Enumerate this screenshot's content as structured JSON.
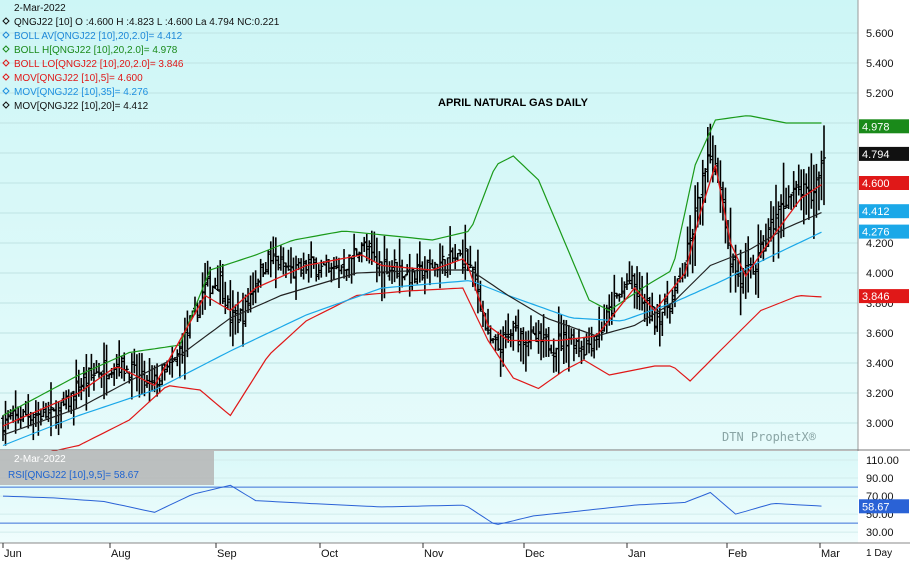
{
  "chart_data": {
    "type": "ohlc",
    "title": "APRIL NATURAL GAS DAILY",
    "date_label": "2-Mar-2022",
    "header": "QNGJ22 [10] O :4.600 H :4.823 L :4.600 La 4.794 NC:0.221",
    "watermark": "DTN ProphetX®",
    "legend": [
      {
        "label": "BOLL AV[QNGJ22 [10],20,2.0]= 4.412",
        "color": "#1e88d8"
      },
      {
        "label": "BOLL H[QNGJ22 [10],20,2.0]= 4.978",
        "color": "#1a8a1a"
      },
      {
        "label": "BOLL LO[QNGJ22 [10],20,2.0]= 3.846",
        "color": "#e01818"
      },
      {
        "label": "MOV[QNGJ22 [10],5]= 4.600",
        "color": "#e01818"
      },
      {
        "label": "MOV[QNGJ22 [10],35]= 4.276",
        "color": "#1e90e0"
      },
      {
        "label": "MOV[QNGJ22 [10],20]= 4.412",
        "color": "#111111"
      }
    ],
    "y_ticks": [
      "5.600",
      "5.400",
      "5.200",
      "5.000",
      "4.800",
      "4.600",
      "4.400",
      "4.200",
      "4.000",
      "3.800",
      "3.600",
      "3.400",
      "3.200",
      "3.000"
    ],
    "ylim": [
      2.82,
      5.82
    ],
    "price_tags": [
      {
        "value": 4.978,
        "label": "4.978",
        "color": "#1a8a1a"
      },
      {
        "value": 4.794,
        "label": "4.794",
        "color": "#111111"
      },
      {
        "value": 4.6,
        "label": "4.600",
        "color": "#e01818"
      },
      {
        "value": 4.412,
        "label": "4.412",
        "color": "#1ba8e8"
      },
      {
        "value": 4.276,
        "label": "4.276",
        "color": "#1ba8e8"
      },
      {
        "value": 3.846,
        "label": "3.846",
        "color": "#e01818"
      }
    ],
    "months": [
      "Jun",
      "Aug",
      "Sep",
      "Oct",
      "Nov",
      "Dec",
      "Jan",
      "Feb",
      "Mar"
    ],
    "period_label": "1 Day",
    "series": {
      "price_path": [
        [
          0,
          3.01
        ],
        [
          10,
          3.06
        ],
        [
          20,
          3.05
        ],
        [
          25,
          3.12
        ],
        [
          30,
          3.25
        ],
        [
          38,
          3.35
        ],
        [
          45,
          3.4
        ],
        [
          52,
          3.33
        ],
        [
          58,
          3.24
        ],
        [
          62,
          3.3
        ],
        [
          68,
          3.4
        ],
        [
          74,
          3.65
        ],
        [
          80,
          3.9
        ],
        [
          86,
          3.95
        ],
        [
          90,
          3.7
        ],
        [
          95,
          3.72
        ],
        [
          100,
          3.95
        ],
        [
          105,
          4.1
        ],
        [
          110,
          4.05
        ],
        [
          115,
          4.0
        ],
        [
          122,
          4.06
        ],
        [
          130,
          4.0
        ],
        [
          137,
          4.08
        ],
        [
          142,
          4.2
        ],
        [
          148,
          4.06
        ],
        [
          155,
          4.05
        ],
        [
          162,
          3.97
        ],
        [
          170,
          4.05
        ],
        [
          176,
          4.08
        ],
        [
          183,
          4.12
        ],
        [
          188,
          3.9
        ],
        [
          192,
          3.55
        ],
        [
          196,
          3.5
        ],
        [
          202,
          3.62
        ],
        [
          210,
          3.55
        ],
        [
          218,
          3.52
        ],
        [
          224,
          3.58
        ],
        [
          230,
          3.5
        ],
        [
          236,
          3.6
        ],
        [
          242,
          3.8
        ],
        [
          248,
          3.95
        ],
        [
          252,
          3.85
        ],
        [
          258,
          3.7
        ],
        [
          264,
          3.8
        ],
        [
          268,
          3.95
        ],
        [
          272,
          4.2
        ],
        [
          276,
          4.55
        ],
        [
          280,
          4.78
        ],
        [
          284,
          4.6
        ],
        [
          288,
          4.1
        ],
        [
          292,
          3.95
        ],
        [
          298,
          4.05
        ],
        [
          304,
          4.3
        ],
        [
          310,
          4.5
        ],
        [
          316,
          4.55
        ],
        [
          320,
          4.5
        ],
        [
          325,
          4.79
        ]
      ],
      "ma5": [
        [
          0,
          2.98
        ],
        [
          30,
          3.2
        ],
        [
          45,
          3.38
        ],
        [
          60,
          3.25
        ],
        [
          80,
          3.85
        ],
        [
          90,
          3.75
        ],
        [
          100,
          3.9
        ],
        [
          120,
          4.05
        ],
        [
          142,
          4.12
        ],
        [
          150,
          4.05
        ],
        [
          170,
          4.02
        ],
        [
          183,
          4.1
        ],
        [
          192,
          3.65
        ],
        [
          200,
          3.55
        ],
        [
          220,
          3.55
        ],
        [
          235,
          3.58
        ],
        [
          250,
          3.9
        ],
        [
          258,
          3.75
        ],
        [
          270,
          4.0
        ],
        [
          276,
          4.4
        ],
        [
          282,
          4.72
        ],
        [
          288,
          4.2
        ],
        [
          294,
          3.98
        ],
        [
          305,
          4.25
        ],
        [
          316,
          4.5
        ],
        [
          325,
          4.6
        ]
      ],
      "ma20": [
        [
          0,
          2.92
        ],
        [
          30,
          3.1
        ],
        [
          50,
          3.28
        ],
        [
          70,
          3.45
        ],
        [
          90,
          3.7
        ],
        [
          110,
          3.85
        ],
        [
          140,
          4.0
        ],
        [
          170,
          4.02
        ],
        [
          185,
          4.02
        ],
        [
          200,
          3.85
        ],
        [
          215,
          3.7
        ],
        [
          235,
          3.58
        ],
        [
          250,
          3.65
        ],
        [
          265,
          3.8
        ],
        [
          280,
          4.05
        ],
        [
          295,
          4.15
        ],
        [
          310,
          4.3
        ],
        [
          325,
          4.41
        ]
      ],
      "ma35": [
        [
          0,
          2.85
        ],
        [
          30,
          3.05
        ],
        [
          60,
          3.22
        ],
        [
          90,
          3.48
        ],
        [
          120,
          3.72
        ],
        [
          150,
          3.9
        ],
        [
          185,
          3.95
        ],
        [
          200,
          3.85
        ],
        [
          225,
          3.7
        ],
        [
          245,
          3.68
        ],
        [
          265,
          3.8
        ],
        [
          285,
          3.95
        ],
        [
          305,
          4.12
        ],
        [
          325,
          4.28
        ]
      ],
      "boll_hi": [
        [
          0,
          3.05
        ],
        [
          30,
          3.32
        ],
        [
          50,
          3.47
        ],
        [
          70,
          3.52
        ],
        [
          82,
          4.02
        ],
        [
          100,
          4.12
        ],
        [
          115,
          4.22
        ],
        [
          135,
          4.28
        ],
        [
          170,
          4.22
        ],
        [
          185,
          4.28
        ],
        [
          195,
          4.72
        ],
        [
          202,
          4.78
        ],
        [
          212,
          4.62
        ],
        [
          225,
          4.1
        ],
        [
          232,
          3.82
        ],
        [
          240,
          3.75
        ],
        [
          255,
          3.92
        ],
        [
          265,
          4.02
        ],
        [
          274,
          4.72
        ],
        [
          282,
          5.02
        ],
        [
          295,
          5.05
        ],
        [
          310,
          5.0
        ],
        [
          325,
          5.0
        ]
      ],
      "boll_lo": [
        [
          0,
          2.74
        ],
        [
          30,
          2.85
        ],
        [
          50,
          3.02
        ],
        [
          65,
          3.25
        ],
        [
          78,
          3.22
        ],
        [
          90,
          3.05
        ],
        [
          105,
          3.45
        ],
        [
          120,
          3.68
        ],
        [
          140,
          3.85
        ],
        [
          160,
          3.88
        ],
        [
          182,
          3.9
        ],
        [
          192,
          3.55
        ],
        [
          202,
          3.3
        ],
        [
          212,
          3.23
        ],
        [
          222,
          3.35
        ],
        [
          230,
          3.42
        ],
        [
          240,
          3.32
        ],
        [
          258,
          3.38
        ],
        [
          265,
          3.38
        ],
        [
          272,
          3.28
        ],
        [
          285,
          3.5
        ],
        [
          300,
          3.75
        ],
        [
          315,
          3.85
        ],
        [
          325,
          3.84
        ]
      ],
      "bar_count": 326
    },
    "rsi": {
      "label": "RSI[QNGJ22 [10],9,5]= 58.67",
      "value_tag": "58.67",
      "y_ticks": [
        "110.00",
        "90.00",
        "70.00",
        "50.00",
        "30.00"
      ],
      "ylim": [
        18,
        120
      ],
      "levels": [
        80,
        40
      ],
      "path": [
        [
          0,
          70
        ],
        [
          20,
          68
        ],
        [
          40,
          64
        ],
        [
          60,
          52
        ],
        [
          75,
          72
        ],
        [
          90,
          82
        ],
        [
          100,
          65
        ],
        [
          120,
          62
        ],
        [
          150,
          58
        ],
        [
          183,
          60
        ],
        [
          195,
          38
        ],
        [
          210,
          48
        ],
        [
          230,
          54
        ],
        [
          250,
          60
        ],
        [
          270,
          63
        ],
        [
          280,
          74
        ],
        [
          290,
          50
        ],
        [
          305,
          62
        ],
        [
          325,
          58.7
        ]
      ]
    }
  }
}
